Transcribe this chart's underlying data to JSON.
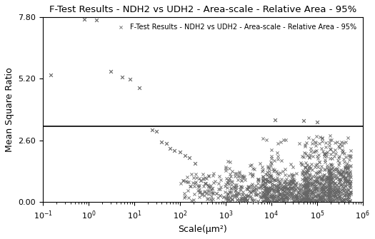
{
  "title": "F-Test Results - NDH2 vs UDH2 - Area-scale - Relative Area - 95%",
  "legend_label": "F-Test Results - NDH2 vs UDH2 - Area-scale - Relative Area - 95%",
  "xlabel": "Scale(μm²)",
  "ylabel": "Mean Square Ratio",
  "xlim_log": [
    -1,
    6
  ],
  "ylim": [
    0.0,
    7.8
  ],
  "yticks": [
    0.0,
    2.6,
    5.2,
    7.8
  ],
  "hline_y": 3.18,
  "marker_color": "#666666",
  "line_color": "#000000",
  "background_color": "#ffffff",
  "title_fontsize": 9.5,
  "label_fontsize": 9,
  "tick_fontsize": 8,
  "legend_fontsize": 7,
  "sparse_points": [
    [
      0.15,
      5.35
    ],
    [
      0.8,
      7.72
    ],
    [
      1.5,
      7.67
    ],
    [
      3.0,
      5.52
    ],
    [
      5.5,
      5.28
    ],
    [
      8.0,
      5.18
    ],
    [
      13.0,
      4.82
    ],
    [
      25.0,
      3.05
    ],
    [
      30.0,
      2.98
    ],
    [
      40.0,
      2.52
    ],
    [
      50.0,
      2.47
    ],
    [
      60.0,
      2.25
    ],
    [
      75.0,
      2.18
    ],
    [
      100.0,
      2.12
    ],
    [
      130.0,
      1.97
    ],
    [
      160.0,
      1.88
    ],
    [
      210.0,
      1.62
    ],
    [
      280.0,
      0.92
    ],
    [
      350.0,
      0.78
    ],
    [
      420.0,
      0.68
    ],
    [
      500.0,
      0.58
    ],
    [
      620.0,
      0.38
    ],
    [
      750.0,
      0.28
    ],
    [
      900.0,
      0.22
    ],
    [
      1100.0,
      0.18
    ],
    [
      1400.0,
      0.12
    ],
    [
      1800.0,
      0.1
    ],
    [
      2200.0,
      0.08
    ],
    [
      3000.0,
      0.06
    ],
    [
      4000.0,
      0.04
    ],
    [
      5000.0,
      0.03
    ],
    [
      7000.0,
      0.02
    ],
    [
      10000.0,
      0.01
    ],
    [
      12000.0,
      3.45
    ],
    [
      50000.0,
      3.42
    ],
    [
      100000.0,
      3.38
    ]
  ]
}
